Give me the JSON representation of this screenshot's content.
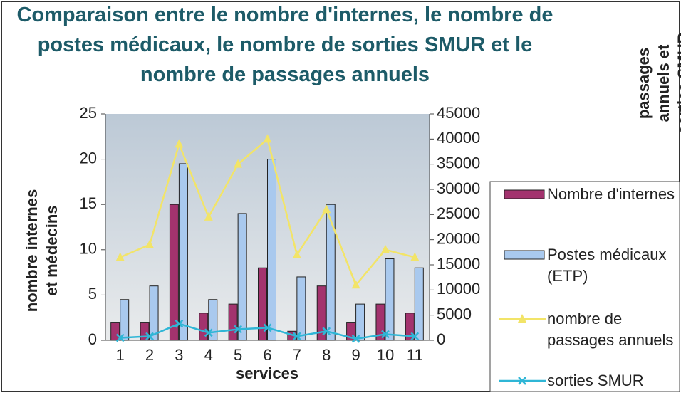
{
  "chart_data": {
    "type": "bar_line",
    "title": "Comparaison entre le nombre d'internes, le nombre de postes médicaux, le nombre de sorties SMUR et le nombre de passages annuels",
    "ylabel": "nombre internes et médecins",
    "y2label": "passages annuels et sorties SMUR",
    "xlabel": "services",
    "categories": [
      "1",
      "2",
      "3",
      "4",
      "5",
      "6",
      "7",
      "8",
      "9",
      "10",
      "11"
    ],
    "series": [
      {
        "name": "Nombre d'internes",
        "kind": "bar",
        "color": "#a3336e",
        "values": [
          2,
          2,
          15,
          3,
          4,
          8,
          1,
          6,
          2,
          4,
          3
        ]
      },
      {
        "name": "Postes médicaux (ETP)",
        "kind": "bar",
        "color": "#a9c9ee",
        "values": [
          4.5,
          6,
          19.5,
          4.5,
          14,
          20,
          7,
          15,
          4,
          9,
          8
        ]
      },
      {
        "name": "nombre de passages annuels",
        "kind": "line",
        "axis": "y2",
        "marker": "triangle",
        "color": "#f2e468",
        "values": [
          16500,
          19000,
          39000,
          24500,
          35000,
          40000,
          17000,
          26000,
          11000,
          18000,
          16500
        ]
      },
      {
        "name": "sorties SMUR",
        "kind": "line",
        "axis": "y2",
        "marker": "x",
        "color": "#2fb6d6",
        "values": [
          500,
          800,
          3300,
          1500,
          2200,
          2500,
          800,
          1800,
          300,
          1200,
          800
        ]
      }
    ],
    "ylim": [
      0,
      25
    ],
    "yticks": [
      0,
      5,
      10,
      15,
      20,
      25
    ],
    "y2lim": [
      0,
      45000
    ],
    "y2ticks": [
      0,
      5000,
      10000,
      15000,
      20000,
      25000,
      30000,
      35000,
      40000,
      45000
    ]
  }
}
